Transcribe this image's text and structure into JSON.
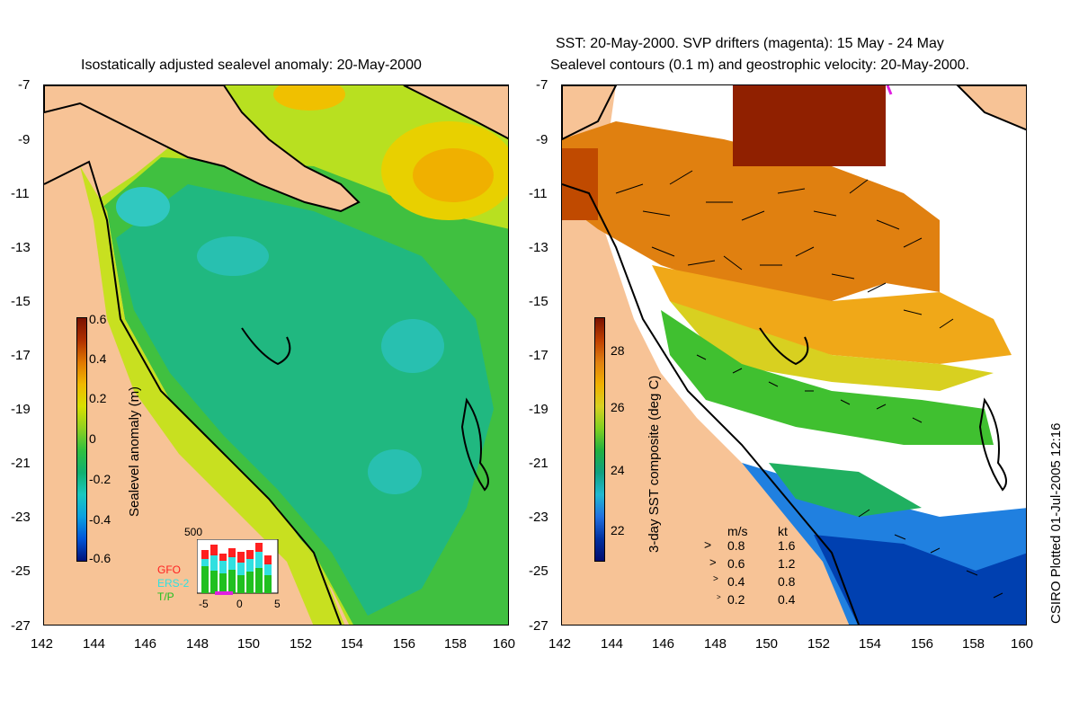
{
  "left_panel": {
    "title": "Isostatically adjusted sealevel anomaly: 20-May-2000",
    "colorbar": {
      "label": "Sealevel anomaly (m)",
      "ticks": [
        "0.6",
        "0.4",
        "0.2",
        "0",
        "-0.2",
        "-0.4",
        "-0.6"
      ],
      "colors": [
        "#00137a",
        "#0055d8",
        "#0aa0e0",
        "#18c8c0",
        "#10b070",
        "#30c040",
        "#90d020",
        "#d8e000",
        "#f0b800",
        "#e07800",
        "#b03000",
        "#7a1200"
      ]
    },
    "inset": {
      "y_label": "500",
      "x_ticks": [
        "-5",
        "0",
        "5"
      ],
      "legend": [
        {
          "text": "GFO",
          "color": "#ff2020"
        },
        {
          "text": "ERS-2",
          "color": "#30e0e0"
        },
        {
          "text": "T/P",
          "color": "#20c020"
        }
      ]
    }
  },
  "right_panel": {
    "title_line1": "SST: 20-May-2000. SVP drifters (magenta): 15 May - 24 May",
    "title_line2": "Sealevel contours (0.1 m) and geostrophic velocity: 20-May-2000.",
    "colorbar": {
      "label": "3-day SST composite (deg C)",
      "ticks": [
        "28",
        "26",
        "24",
        "22"
      ]
    },
    "velocity_legend": {
      "header_ms": "m/s",
      "header_kt": "kt",
      "rows": [
        {
          "ms": "0.8",
          "kt": "1.6"
        },
        {
          "ms": "0.6",
          "kt": "1.2"
        },
        {
          "ms": "0.4",
          "kt": "0.8"
        },
        {
          "ms": "0.2",
          "kt": "0.4"
        }
      ]
    }
  },
  "axes": {
    "lat_ticks": [
      "-7",
      "-9",
      "-11",
      "-13",
      "-15",
      "-17",
      "-19",
      "-21",
      "-23",
      "-25",
      "-27"
    ],
    "lon_ticks": [
      "142",
      "144",
      "146",
      "148",
      "150",
      "152",
      "154",
      "156",
      "158",
      "160"
    ]
  },
  "credit": "CSIRO Plotted 01-Jul-2005 12:16",
  "colors": {
    "land": "#f7c396",
    "background": "#ffffff"
  }
}
